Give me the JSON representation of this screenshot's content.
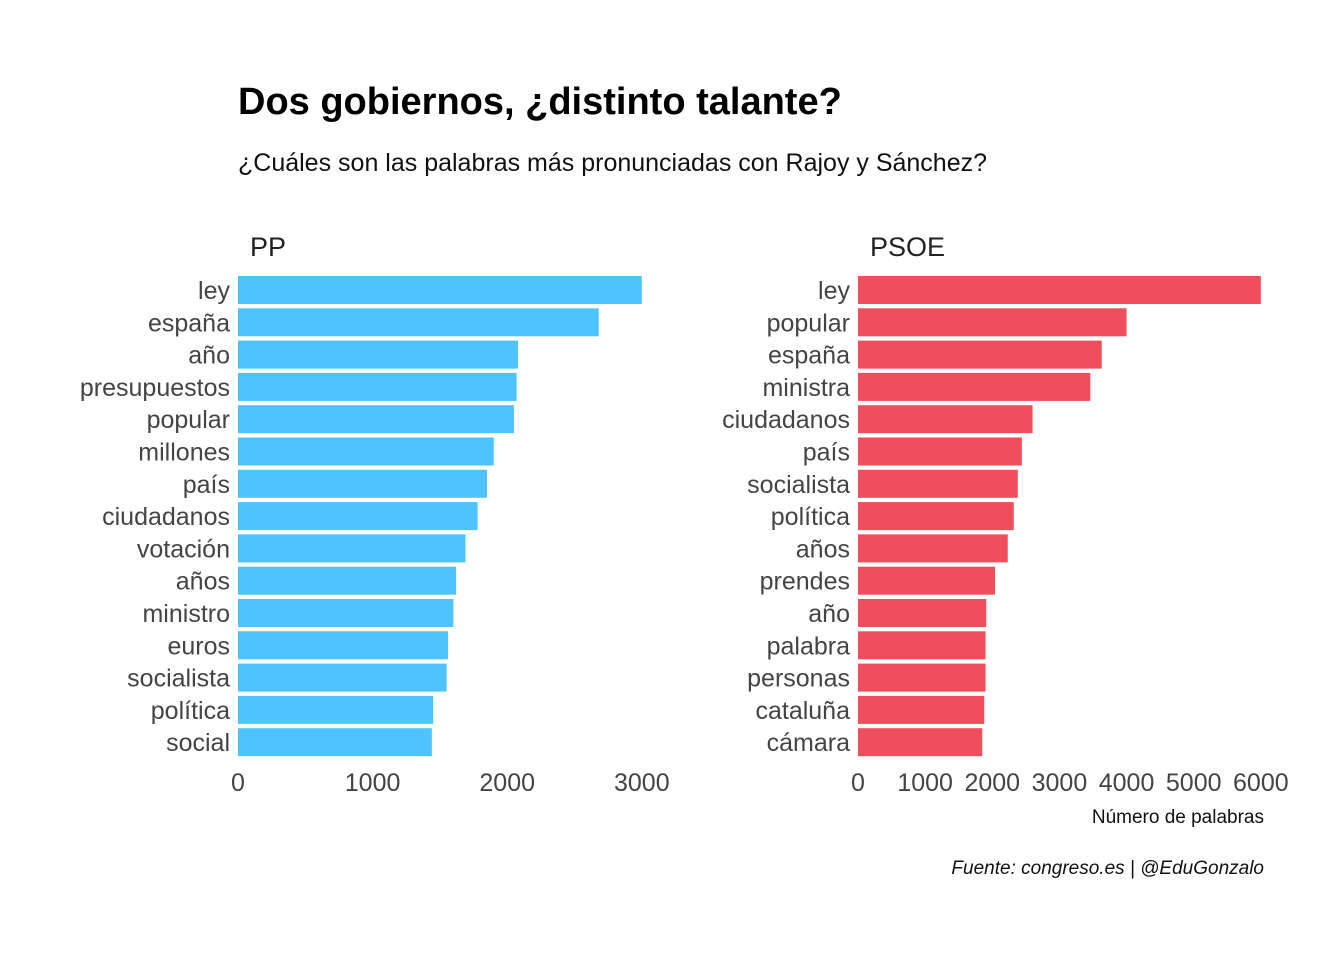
{
  "title": "Dos gobiernos, ¿distinto talante?",
  "subtitle": "¿Cuáles son las palabras más pronunciadas con Rajoy y Sánchez?",
  "caption": "Fuente: congreso.es | @EduGonzalo",
  "chart_data": [
    {
      "type": "bar",
      "orientation": "horizontal",
      "panel_title": "PP",
      "color": "#4fc3fb",
      "xlabel": "",
      "xlim": [
        0,
        3150
      ],
      "xticks": [
        0,
        1000,
        2000,
        3000
      ],
      "xtick_labels": [
        "0",
        "1000",
        "2000",
        "3000"
      ],
      "categories": [
        "ley",
        "españa",
        "año",
        "presupuestos",
        "popular",
        "millones",
        "país",
        "ciudadanos",
        "votación",
        "años",
        "ministro",
        "euros",
        "socialista",
        "política",
        "social"
      ],
      "values": [
        3000,
        2680,
        2080,
        2070,
        2050,
        1900,
        1850,
        1780,
        1690,
        1620,
        1600,
        1560,
        1550,
        1450,
        1440
      ]
    },
    {
      "type": "bar",
      "orientation": "horizontal",
      "panel_title": "PSOE",
      "color": "#ef4e5c",
      "xlabel": "Número de palabras",
      "xlim": [
        0,
        6300
      ],
      "xticks": [
        0,
        1000,
        2000,
        3000,
        4000,
        5000,
        6000
      ],
      "xtick_labels": [
        "0",
        "1000",
        "2000",
        "3000",
        "4000",
        "5000",
        "6000"
      ],
      "categories": [
        "ley",
        "popular",
        "españa",
        "ministra",
        "ciudadanos",
        "país",
        "socialista",
        "política",
        "años",
        "prendes",
        "año",
        "palabra",
        "personas",
        "cataluña",
        "cámara"
      ],
      "values": [
        6000,
        4000,
        3630,
        3460,
        2600,
        2440,
        2380,
        2320,
        2230,
        2040,
        1910,
        1900,
        1900,
        1880,
        1850
      ]
    }
  ]
}
